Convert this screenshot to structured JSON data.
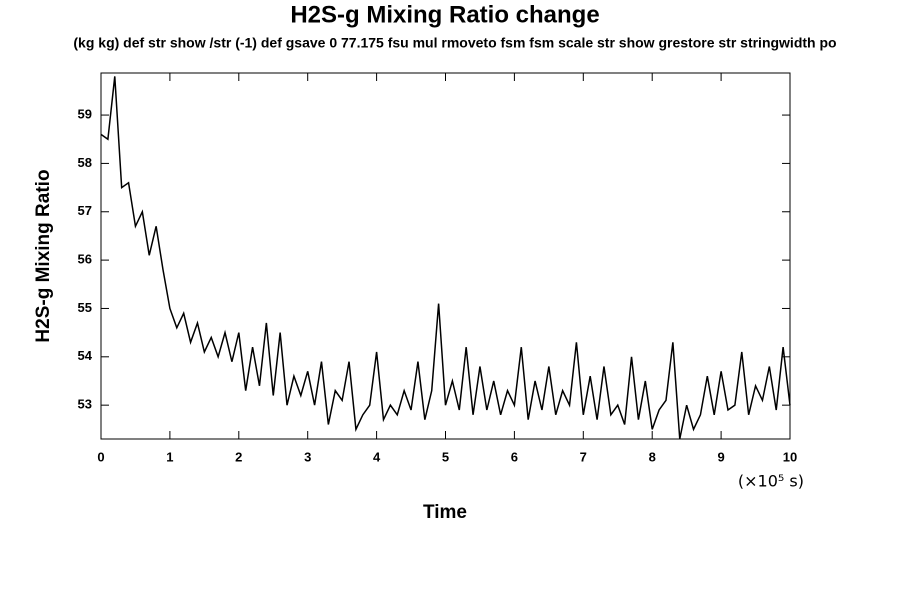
{
  "chart_data": {
    "type": "line",
    "title": "H2S-g Mixing Ratio change",
    "subtitle": "(kg kg) def str show /str (-1) def gsave 0 77.175 fsu mul rmoveto fsm fsm scale str show grestore str stringwidth po",
    "x_label": "Time",
    "x_unit": "(×10⁵ s)",
    "y_label": "H2S-g Mixing Ratio",
    "x": [
      0,
      0.1,
      0.2,
      0.3,
      0.4,
      0.5,
      0.6,
      0.7,
      0.8,
      0.9,
      1,
      1.1,
      1.2,
      1.3,
      1.4,
      1.5,
      1.6,
      1.7,
      1.8,
      1.9,
      2,
      2.1,
      2.2,
      2.3,
      2.4,
      2.5,
      2.6,
      2.7,
      2.8,
      2.9,
      3,
      3.1,
      3.2,
      3.3,
      3.4,
      3.5,
      3.6,
      3.7,
      3.8,
      3.9,
      4,
      4.1,
      4.2,
      4.3,
      4.4,
      4.5,
      4.6,
      4.7,
      4.8,
      4.9,
      5,
      5.1,
      5.2,
      5.3,
      5.4,
      5.5,
      5.6,
      5.7,
      5.8,
      5.9,
      6,
      6.1,
      6.2,
      6.3,
      6.4,
      6.5,
      6.6,
      6.7,
      6.8,
      6.9,
      7,
      7.1,
      7.2,
      7.3,
      7.4,
      7.5,
      7.6,
      7.7,
      7.8,
      7.9,
      8,
      8.1,
      8.2,
      8.3,
      8.4,
      8.5,
      8.6,
      8.7,
      8.8,
      8.9,
      9,
      9.1,
      9.2,
      9.3,
      9.4,
      9.5,
      9.6,
      9.7,
      9.8,
      9.9,
      10
    ],
    "series": [
      {
        "name": "H2S-g",
        "color": "#000000",
        "values": [
          58.6,
          58.5,
          59.8,
          57.5,
          57.6,
          56.7,
          57.0,
          56.1,
          56.7,
          55.8,
          55.0,
          54.6,
          54.9,
          54.3,
          54.7,
          54.1,
          54.4,
          54.0,
          54.5,
          53.9,
          54.5,
          53.3,
          54.2,
          53.4,
          54.7,
          53.2,
          54.5,
          53.0,
          53.6,
          53.2,
          53.7,
          53.0,
          53.9,
          52.6,
          53.3,
          53.1,
          53.9,
          52.5,
          52.8,
          53.0,
          54.1,
          52.7,
          53.0,
          52.8,
          53.3,
          52.9,
          53.9,
          52.7,
          53.3,
          55.1,
          53.0,
          53.5,
          52.9,
          54.2,
          52.8,
          53.8,
          52.9,
          53.5,
          52.8,
          53.3,
          53.0,
          54.2,
          52.7,
          53.5,
          52.9,
          53.8,
          52.8,
          53.3,
          53.0,
          54.3,
          52.8,
          53.6,
          52.7,
          53.8,
          52.8,
          53.0,
          52.6,
          54.0,
          52.7,
          53.5,
          52.5,
          52.9,
          53.1,
          54.3,
          52.3,
          53.0,
          52.5,
          52.8,
          53.6,
          52.8,
          53.7,
          52.9,
          53.0,
          54.1,
          52.8,
          53.4,
          53.1,
          53.8,
          52.9,
          54.2,
          53.0
        ]
      }
    ],
    "xlim": [
      0,
      10
    ],
    "ylim": [
      52.3,
      59.87
    ],
    "xticks": [
      0,
      1,
      2,
      3,
      4,
      5,
      6,
      7,
      8,
      9,
      10
    ],
    "yticks": [
      53,
      54,
      55,
      56,
      57,
      58,
      59
    ]
  }
}
